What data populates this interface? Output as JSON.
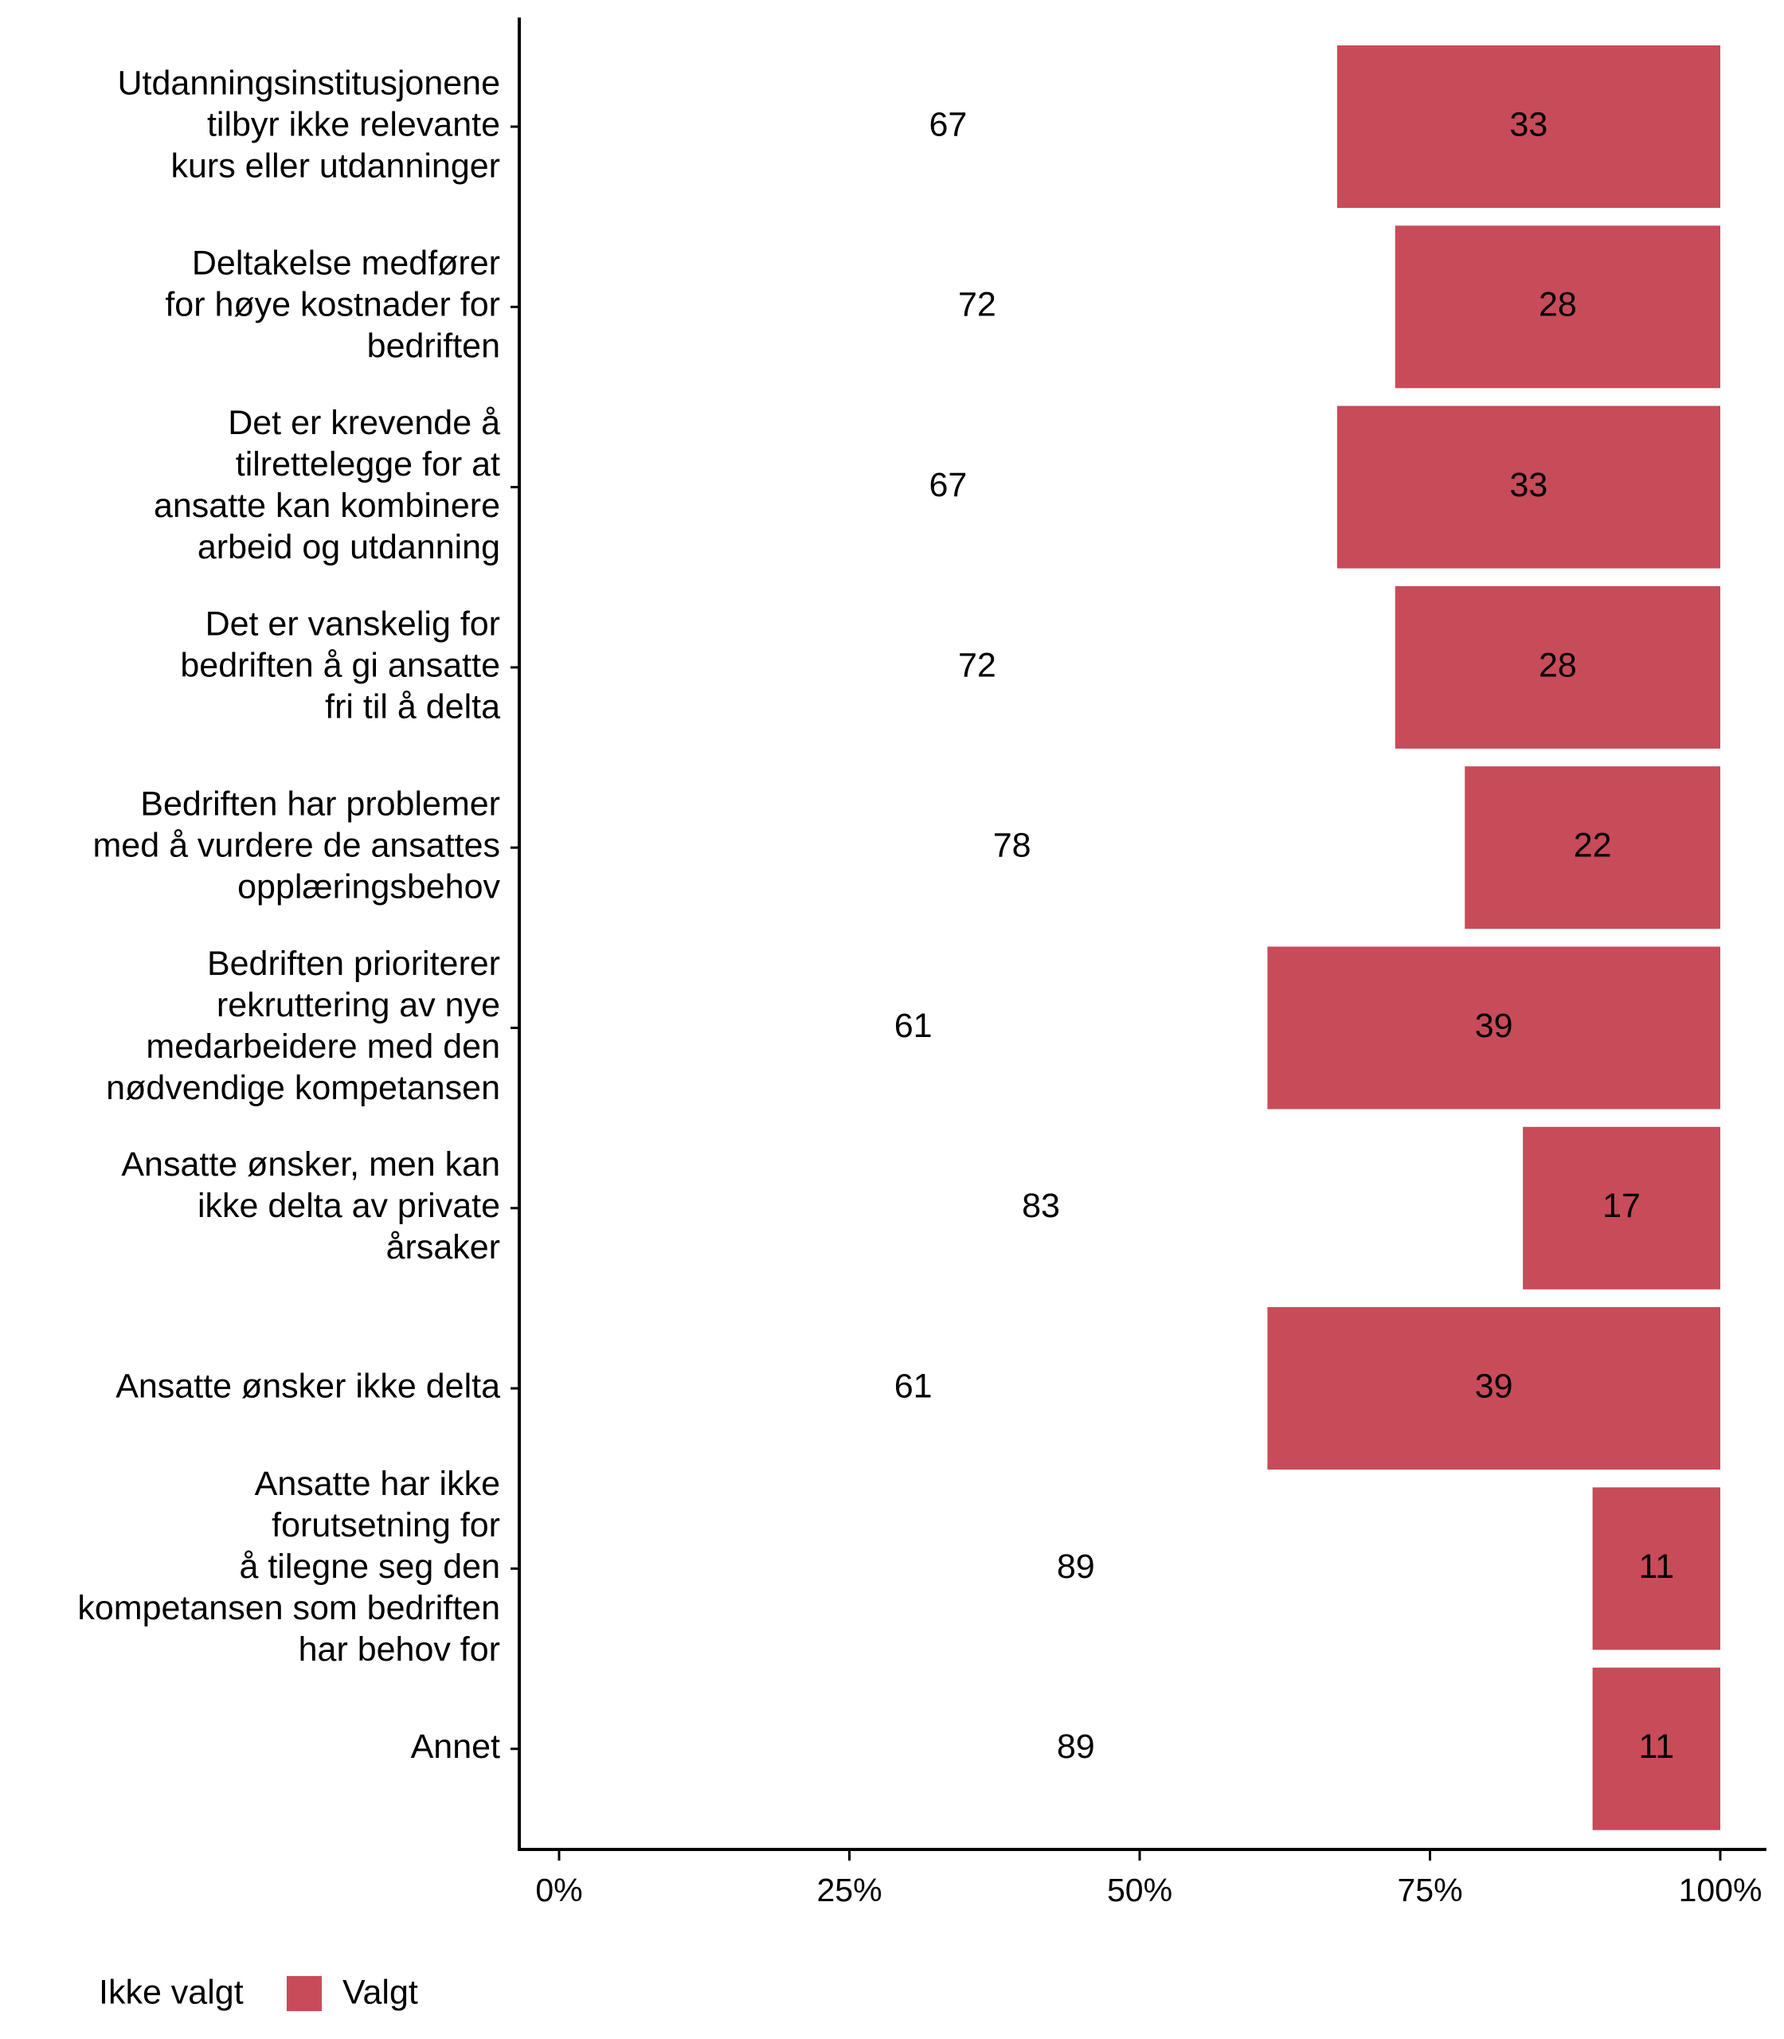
{
  "chart_data": {
    "type": "bar",
    "orientation": "horizontal",
    "stacked": "percent",
    "categories": [
      [
        "Utdanningsinstitusjonene",
        "tilbyr ikke relevante",
        "kurs eller utdanninger"
      ],
      [
        "Deltakelse medfører",
        "for høye kostnader for",
        "bedriften"
      ],
      [
        "Det er krevende å",
        "tilrettelegge for at",
        "ansatte kan kombinere",
        "arbeid og utdanning"
      ],
      [
        "Det er vanskelig for",
        "bedriften å gi ansatte",
        "fri til å delta"
      ],
      [
        "Bedriften har problemer",
        "med å vurdere de ansattes",
        "opplæringsbehov"
      ],
      [
        "Bedriften prioriterer",
        "rekruttering av nye",
        "medarbeidere med den",
        "nødvendige kompetansen"
      ],
      [
        "Ansatte ønsker, men kan",
        "ikke delta av private",
        "årsaker"
      ],
      [
        "Ansatte ønsker ikke delta"
      ],
      [
        "Ansatte har ikke",
        "forutsetning for",
        "å tilegne seg den",
        "kompetansen som bedriften",
        "har behov for"
      ],
      [
        "Annet"
      ]
    ],
    "series": [
      {
        "name": "Ikke valgt",
        "color": "#FFFFFF",
        "label_color": "#000000",
        "values": [
          67,
          72,
          67,
          72,
          78,
          61,
          83,
          61,
          89,
          89
        ]
      },
      {
        "name": "Valgt",
        "color": "#C84B5A",
        "label_color": "#FFFFFF",
        "values": [
          33,
          28,
          33,
          28,
          22,
          39,
          17,
          39,
          11,
          11
        ]
      }
    ],
    "xlim": [
      0,
      100
    ],
    "x_ticks": [
      "0%",
      "25%",
      "50%",
      "75%",
      "100%"
    ],
    "x_tick_values": [
      0,
      25,
      50,
      75,
      100
    ],
    "xlabel": "",
    "ylabel": "",
    "grid": false,
    "legend_position": "bottom-left"
  }
}
